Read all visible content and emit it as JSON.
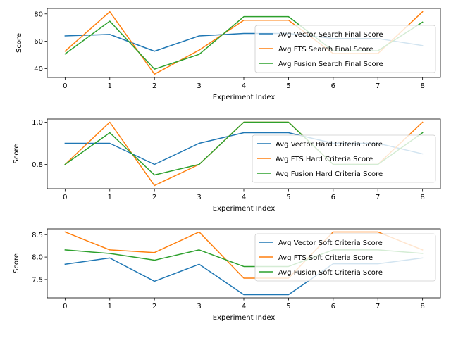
{
  "chart_data": [
    {
      "type": "line",
      "xlabel": "Experiment Index",
      "ylabel": "Score",
      "x": [
        0,
        1,
        2,
        3,
        4,
        5,
        6,
        7,
        8
      ],
      "xlim": [
        -0.4,
        8.4
      ],
      "ylim": [
        33.5,
        84.0
      ],
      "xticks": [
        "0",
        "1",
        "2",
        "3",
        "4",
        "5",
        "6",
        "7",
        "8"
      ],
      "yticks": [
        40,
        60,
        80
      ],
      "ytick_labels": [
        "40",
        "60",
        "80"
      ],
      "grid": false,
      "legend_position": "center-right",
      "series": [
        {
          "name": "Avg Vector Search Final Score",
          "color": "#1f77b4",
          "values": [
            63.9,
            65.0,
            52.7,
            63.9,
            65.7,
            65.7,
            62.0,
            62.0,
            56.8
          ]
        },
        {
          "name": "Avg FTS Search Final Score",
          "color": "#ff7f0e",
          "values": [
            52.7,
            81.6,
            35.9,
            53.5,
            75.4,
            75.4,
            51.0,
            51.0,
            81.6
          ]
        },
        {
          "name": "Avg Fusion Search Final Score",
          "color": "#2ca02c",
          "values": [
            50.7,
            74.7,
            39.6,
            50.4,
            78.0,
            78.0,
            53.0,
            53.0,
            74.0
          ]
        }
      ]
    },
    {
      "type": "line",
      "xlabel": "Experiment Index",
      "ylabel": "Score",
      "x": [
        0,
        1,
        2,
        3,
        4,
        5,
        6,
        7,
        8
      ],
      "xlim": [
        -0.4,
        8.4
      ],
      "ylim": [
        0.685,
        1.015
      ],
      "xticks": [
        "0",
        "1",
        "2",
        "3",
        "4",
        "5",
        "6",
        "7",
        "8"
      ],
      "yticks": [
        0.8,
        1.0
      ],
      "ytick_labels": [
        "0.8",
        "1.0"
      ],
      "grid": false,
      "legend_position": "center-right",
      "series": [
        {
          "name": "Avg Vector Hard Criteria Score",
          "color": "#1f77b4",
          "values": [
            0.9,
            0.9,
            0.8,
            0.9,
            0.95,
            0.95,
            0.9,
            0.9,
            0.85
          ]
        },
        {
          "name": "Avg FTS Hard Criteria Score",
          "color": "#ff7f0e",
          "values": [
            0.8,
            1.0,
            0.7,
            0.8,
            1.0,
            1.0,
            0.8,
            0.8,
            1.0
          ]
        },
        {
          "name": "Avg Fusion Hard Criteria Score",
          "color": "#2ca02c",
          "values": [
            0.8,
            0.95,
            0.75,
            0.8,
            1.0,
            1.0,
            0.8,
            0.8,
            0.95
          ]
        }
      ]
    },
    {
      "type": "line",
      "xlabel": "Experiment Index",
      "ylabel": "Score",
      "x": [
        0,
        1,
        2,
        3,
        4,
        5,
        6,
        7,
        8
      ],
      "xlim": [
        -0.4,
        8.4
      ],
      "ylim": [
        7.09,
        8.63
      ],
      "xticks": [
        "0",
        "1",
        "2",
        "3",
        "4",
        "5",
        "6",
        "7",
        "8"
      ],
      "yticks": [
        7.5,
        8.0,
        8.5
      ],
      "ytick_labels": [
        "7.5",
        "8.0",
        "8.5"
      ],
      "grid": false,
      "legend_position": "center-right",
      "series": [
        {
          "name": "Avg Vector Soft Criteria Score",
          "color": "#1f77b4",
          "values": [
            7.84,
            7.98,
            7.46,
            7.84,
            7.16,
            7.16,
            7.85,
            7.85,
            7.98
          ]
        },
        {
          "name": "Avg FTS Soft Criteria Score",
          "color": "#ff7f0e",
          "values": [
            8.56,
            8.16,
            8.1,
            8.56,
            7.53,
            7.53,
            8.56,
            8.56,
            8.16
          ]
        },
        {
          "name": "Avg Fusion Soft Criteria Score",
          "color": "#2ca02c",
          "values": [
            8.16,
            8.08,
            7.93,
            8.16,
            7.79,
            7.79,
            8.16,
            8.16,
            8.08
          ]
        }
      ]
    }
  ]
}
